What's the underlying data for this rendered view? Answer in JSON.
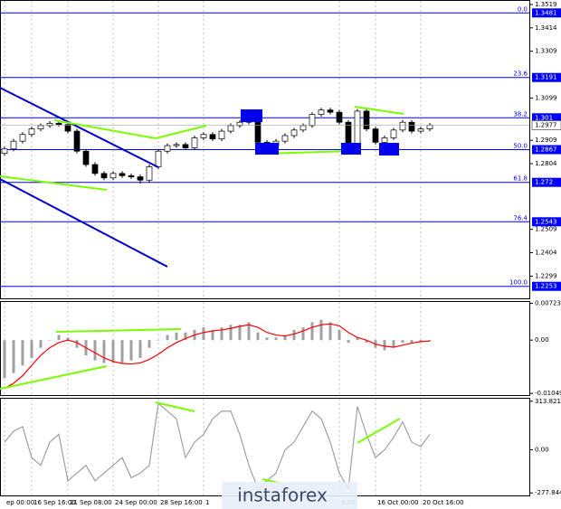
{
  "chart_data": [
    {
      "type": "candlestick",
      "categories": [
        "ep 00:00",
        null,
        null,
        "16 Sep 16:00",
        null,
        null,
        null,
        "21 Sep 08:00",
        null,
        null,
        null,
        null,
        "24 Sep 00:00",
        null,
        null,
        null,
        null,
        "28 Sep 16:00",
        null,
        null,
        null,
        null,
        "1",
        null,
        null,
        null,
        null,
        null,
        null,
        null,
        null,
        null,
        null,
        null,
        null,
        null,
        null,
        "6:00",
        null,
        null,
        null,
        "16 Oct 00:00",
        null,
        null,
        null,
        null,
        "20 Oct 16:00",
        null
      ],
      "open": [
        1.285,
        1.287,
        1.2905,
        1.2935,
        1.296,
        1.2975,
        1.2985,
        1.298,
        1.295,
        1.286,
        1.28,
        1.276,
        1.274,
        1.276,
        1.275,
        1.2745,
        1.273,
        1.279,
        1.286,
        1.2885,
        1.289,
        1.2875,
        1.292,
        1.2935,
        1.2915,
        1.295,
        1.2975,
        1.299,
        1.3,
        1.29,
        1.2885,
        1.2905,
        1.293,
        1.2955,
        1.2975,
        1.3025,
        1.3045,
        1.3035,
        1.299,
        1.289,
        1.304,
        1.296,
        1.29,
        1.292,
        1.2955,
        1.299,
        1.295,
        1.296
      ],
      "high": [
        1.288,
        1.2915,
        1.2945,
        1.297,
        1.2985,
        1.2995,
        1.2995,
        1.299,
        1.296,
        1.287,
        1.281,
        1.277,
        1.277,
        1.277,
        1.276,
        1.2755,
        1.28,
        1.287,
        1.2895,
        1.29,
        1.29,
        1.293,
        1.2945,
        1.2945,
        1.296,
        1.2985,
        1.3,
        1.301,
        1.301,
        1.291,
        1.2915,
        1.294,
        1.2965,
        1.2985,
        1.3035,
        1.3055,
        1.3055,
        1.3045,
        1.3,
        1.305,
        1.305,
        1.297,
        1.293,
        1.2965,
        1.3,
        1.3,
        1.297,
        1.2987
      ],
      "low": [
        1.284,
        1.286,
        1.2895,
        1.2925,
        1.295,
        1.2965,
        1.297,
        1.294,
        1.285,
        1.279,
        1.275,
        1.273,
        1.273,
        1.274,
        1.2735,
        1.2715,
        1.272,
        1.278,
        1.285,
        1.2875,
        1.2865,
        1.2865,
        1.291,
        1.2905,
        1.2905,
        1.294,
        1.2965,
        1.298,
        1.289,
        1.2875,
        1.2875,
        1.2895,
        1.292,
        1.2945,
        1.2965,
        1.3015,
        1.3025,
        1.298,
        1.288,
        1.288,
        1.295,
        1.289,
        1.289,
        1.291,
        1.2945,
        1.294,
        1.294,
        1.295
      ],
      "close": [
        1.287,
        1.2905,
        1.2935,
        1.296,
        1.2975,
        1.2985,
        1.298,
        1.295,
        1.286,
        1.28,
        1.276,
        1.274,
        1.276,
        1.275,
        1.2745,
        1.273,
        1.279,
        1.286,
        1.2885,
        1.289,
        1.2875,
        1.292,
        1.2935,
        1.2915,
        1.295,
        1.2975,
        1.299,
        1.3,
        1.29,
        1.2885,
        1.2905,
        1.293,
        1.2955,
        1.2975,
        1.3025,
        1.3045,
        1.3035,
        1.299,
        1.289,
        1.304,
        1.296,
        1.29,
        1.292,
        1.2955,
        1.299,
        1.295,
        1.296,
        1.2977
      ],
      "ylim": [
        1.2195,
        1.3535
      ],
      "yticks": [
        1.3519,
        1.3414,
        1.3309,
        1.3099,
        1.2909,
        1.2804,
        1.2509,
        1.2404,
        1.2299
      ],
      "levels": [
        {
          "label": "0.0",
          "value": 1.3481
        },
        {
          "label": "23.6",
          "value": 1.3191
        },
        {
          "label": "38.2",
          "value": 1.301
        },
        {
          "label": "50.0",
          "value": 1.2867
        },
        {
          "label": "61.8",
          "value": 1.272
        },
        {
          "label": "76.4",
          "value": 1.2543
        },
        {
          "label": "100.0",
          "value": 1.2253
        }
      ],
      "level_color": "#0000ff",
      "up_color": "#ffffff",
      "down_color": "#000000"
    },
    {
      "type": "bar",
      "series": [
        {
          "type": "bar",
          "color": "#a0a0a0",
          "values": [
            -0.0075,
            -0.0065,
            -0.005,
            -0.0035,
            -0.0015,
            0.0,
            0.001,
            0.0005,
            -0.0015,
            -0.003,
            -0.004,
            -0.0045,
            -0.0045,
            -0.0045,
            -0.004,
            -0.0035,
            -0.0015,
            0.0,
            0.001,
            0.0015,
            0.0015,
            0.002,
            0.0025,
            0.002,
            0.0025,
            0.003,
            0.003,
            0.0035,
            0.0015,
            0.0005,
            0.0005,
            0.001,
            0.002,
            0.0025,
            0.0035,
            0.004,
            0.0035,
            0.002,
            -0.0005,
            0.0005,
            -0.0005,
            -0.0015,
            -0.002,
            -0.0015,
            -0.0005,
            -0.0005,
            -0.0003,
            -0.0002
          ]
        },
        {
          "type": "line",
          "color": "#ff0000",
          "values": [
            -0.0095,
            -0.0085,
            -0.007,
            -0.005,
            -0.003,
            -0.0015,
            -0.0005,
            0.0,
            -0.0005,
            -0.0015,
            -0.0025,
            -0.0035,
            -0.0042,
            -0.0046,
            -0.0047,
            -0.0045,
            -0.0038,
            -0.0028,
            -0.0015,
            -0.0005,
            0.0003,
            0.001,
            0.0015,
            0.0018,
            0.002,
            0.0023,
            0.0027,
            0.003,
            0.0025,
            0.0015,
            0.001,
            0.0008,
            0.0012,
            0.0018,
            0.0025,
            0.003,
            0.0032,
            0.0028,
            0.0015,
            0.0005,
            0.0,
            -0.0008,
            -0.0012,
            -0.0014,
            -0.001,
            -0.0006,
            -0.0003,
            -0.0002
          ]
        }
      ],
      "ylim": [
        -0.011,
        0.0075
      ],
      "yticks": [
        0.00723,
        {
          "value": 0,
          "label": "0.00"
        },
        -0.01049
      ]
    },
    {
      "type": "line",
      "series": [
        {
          "type": "line",
          "color": "#a0a0a0",
          "values": [
            50,
            120,
            150,
            -50,
            -100,
            50,
            100,
            -200,
            -150,
            -100,
            -200,
            -150,
            -100,
            -50,
            -180,
            -150,
            -100,
            300,
            250,
            200,
            -50,
            50,
            100,
            200,
            250,
            250,
            100,
            -100,
            -250,
            -200,
            -150,
            0,
            50,
            150,
            250,
            200,
            50,
            -150,
            -250,
            280,
            100,
            -50,
            0,
            80,
            180,
            50,
            20,
            100
          ]
        }
      ],
      "ylim": [
        -300,
        330
      ],
      "yticks": [
        313.8212,
        {
          "value": 0,
          "label": "0.00"
        },
        -277.8446
      ]
    }
  ],
  "watermark": "instaforex"
}
